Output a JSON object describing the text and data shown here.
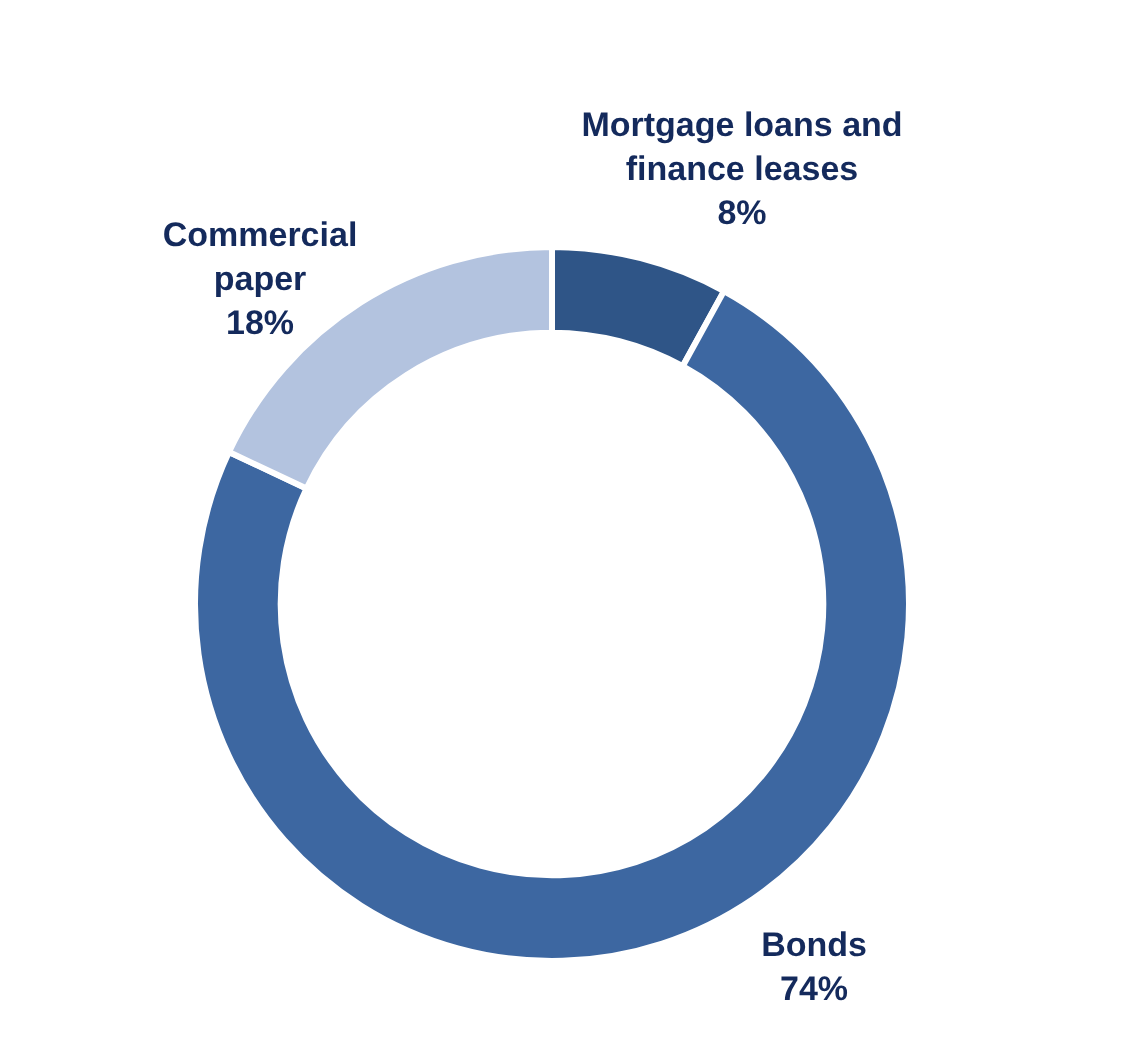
{
  "chart_data": {
    "type": "donut",
    "categories": [
      "Mortgage loans and finance leases",
      "Bonds",
      "Commercial paper"
    ],
    "values": [
      8,
      74,
      18
    ],
    "colors": [
      "#2f5587",
      "#3d67a1",
      "#b3c3df"
    ],
    "value_labels": [
      "8%",
      "74%",
      "18%"
    ],
    "legend": false
  }
}
